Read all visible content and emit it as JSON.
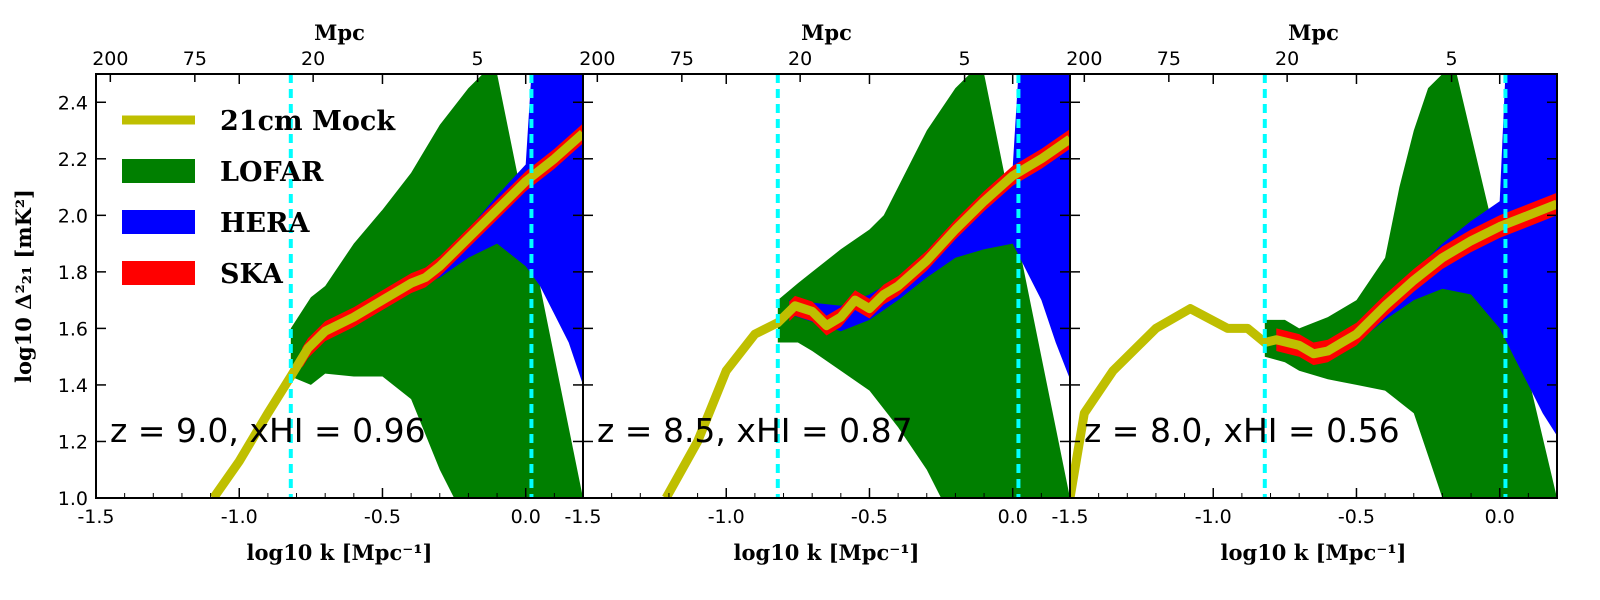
{
  "chart_data": {
    "type": "area",
    "legend_position": "top-left",
    "ylabel": "log10 Δ²₂₁ [mK²]",
    "xlabel": "log10 k [Mpc⁻¹]",
    "top_axis_label": "Mpc",
    "top_ticks": [
      {
        "label": "200",
        "logk": -1.45
      },
      {
        "label": "75",
        "logk": -1.155
      },
      {
        "label": "20",
        "logk": -0.742
      },
      {
        "label": "5",
        "logk": -0.168
      }
    ],
    "xlim": [
      -1.5,
      0.2
    ],
    "ylim": [
      1.0,
      2.5
    ],
    "x_ticks": [
      {
        "v": -1.5,
        "label": "-1.5"
      },
      {
        "v": -1.0,
        "label": "-1.0"
      },
      {
        "v": -0.5,
        "label": "-0.5"
      },
      {
        "v": 0.0,
        "label": "0.0"
      }
    ],
    "y_ticks": [
      {
        "v": 1.0,
        "label": "1.0"
      },
      {
        "v": 1.2,
        "label": "1.2"
      },
      {
        "v": 1.4,
        "label": "1.4"
      },
      {
        "v": 1.6,
        "label": "1.6"
      },
      {
        "v": 1.8,
        "label": "1.8"
      },
      {
        "v": 2.0,
        "label": "2.0"
      },
      {
        "v": 2.2,
        "label": "2.2"
      },
      {
        "v": 2.4,
        "label": "2.4"
      }
    ],
    "vlines": [
      -0.82,
      0.02
    ],
    "legend": [
      {
        "label": "21cm Mock",
        "kind": "line",
        "color": "#bfbf00"
      },
      {
        "label": "LOFAR",
        "kind": "patch",
        "color": "#007f00"
      },
      {
        "label": "HERA",
        "kind": "patch",
        "color": "#0000ff"
      },
      {
        "label": "SKA",
        "kind": "patch",
        "color": "#ff0000"
      }
    ],
    "colors": {
      "mock": "#bfbf00",
      "lofar": "#007f00",
      "hera": "#0000ff",
      "ska": "#ff0000",
      "vline": "#00ffff"
    },
    "panels": [
      {
        "annotation": "z = 9.0, xHI = 0.96",
        "mock": {
          "x": [
            -1.09,
            -1.0,
            -0.9,
            -0.82,
            -0.76,
            -0.7,
            -0.6,
            -0.5,
            -0.4,
            -0.35,
            -0.3,
            -0.2,
            -0.1,
            0.0,
            0.1,
            0.2
          ],
          "y": [
            1.0,
            1.13,
            1.3,
            1.43,
            1.53,
            1.59,
            1.64,
            1.7,
            1.76,
            1.78,
            1.82,
            1.92,
            2.02,
            2.12,
            2.2,
            2.29
          ]
        },
        "lofar_upper": {
          "x": [
            -0.82,
            -0.75,
            -0.7,
            -0.6,
            -0.5,
            -0.4,
            -0.3,
            -0.2,
            -0.15,
            -0.1
          ],
          "y": [
            1.6,
            1.71,
            1.75,
            1.9,
            2.02,
            2.15,
            2.32,
            2.45,
            2.5,
            2.5
          ]
        },
        "lofar_lower": {
          "x": [
            -0.82,
            -0.75,
            -0.7,
            -0.6,
            -0.5,
            -0.4,
            -0.3,
            -0.25,
            -0.2,
            -0.15,
            -0.1,
            -0.05,
            0.0,
            0.05,
            0.1,
            0.15,
            0.2
          ],
          "y": [
            1.43,
            1.4,
            1.44,
            1.43,
            1.43,
            1.35,
            1.1,
            1.0,
            1.0,
            1.0,
            1.0,
            1.0,
            1.0,
            1.0,
            1.0,
            1.0,
            1.0
          ]
        },
        "hera_upper": {
          "x": [
            -0.75,
            -0.5,
            -0.3,
            -0.2,
            -0.1,
            0.0,
            0.02,
            0.1,
            0.2
          ],
          "y": [
            1.53,
            1.71,
            1.85,
            1.95,
            2.07,
            2.18,
            2.5,
            2.5,
            2.5
          ]
        },
        "hera_lower": {
          "x": [
            -0.75,
            -0.5,
            -0.3,
            -0.2,
            -0.1,
            0.0,
            0.05,
            0.1,
            0.15,
            0.2
          ],
          "y": [
            1.53,
            1.69,
            1.78,
            1.85,
            1.9,
            1.82,
            1.75,
            1.65,
            1.55,
            1.4
          ]
        },
        "ska_halfwidth": 0.035,
        "ska_start": -0.78
      },
      {
        "annotation": "z = 8.5, xHI = 0.87",
        "mock": {
          "x": [
            -1.21,
            -1.1,
            -1.0,
            -0.9,
            -0.82,
            -0.76,
            -0.7,
            -0.65,
            -0.6,
            -0.55,
            -0.5,
            -0.45,
            -0.4,
            -0.3,
            -0.2,
            -0.1,
            0.0,
            0.1,
            0.2
          ],
          "y": [
            1.0,
            1.2,
            1.45,
            1.58,
            1.62,
            1.68,
            1.66,
            1.61,
            1.64,
            1.7,
            1.67,
            1.72,
            1.75,
            1.84,
            1.95,
            2.05,
            2.14,
            2.2,
            2.27
          ]
        },
        "lofar_upper": {
          "x": [
            -0.82,
            -0.75,
            -0.7,
            -0.6,
            -0.5,
            -0.45,
            -0.4,
            -0.3,
            -0.2,
            -0.15,
            -0.1
          ],
          "y": [
            1.7,
            1.76,
            1.8,
            1.88,
            1.95,
            2.0,
            2.1,
            2.3,
            2.45,
            2.5,
            2.5
          ]
        },
        "lofar_lower": {
          "x": [
            -0.82,
            -0.75,
            -0.7,
            -0.6,
            -0.5,
            -0.4,
            -0.3,
            -0.25,
            -0.2,
            -0.15,
            -0.1,
            -0.05,
            0.0,
            0.05,
            0.1,
            0.15,
            0.2
          ],
          "y": [
            1.55,
            1.55,
            1.52,
            1.45,
            1.38,
            1.25,
            1.1,
            1.0,
            1.0,
            1.0,
            1.0,
            1.0,
            1.0,
            1.0,
            1.0,
            1.0,
            1.0
          ]
        },
        "hera_upper": {
          "x": [
            -0.78,
            -0.6,
            -0.5,
            -0.4,
            -0.3,
            -0.2,
            -0.1,
            0.0,
            0.02,
            0.1,
            0.2
          ],
          "y": [
            1.7,
            1.68,
            1.72,
            1.78,
            1.86,
            1.96,
            2.06,
            2.17,
            2.5,
            2.5,
            2.5
          ]
        },
        "hera_lower": {
          "x": [
            -0.78,
            -0.6,
            -0.5,
            -0.4,
            -0.3,
            -0.2,
            -0.1,
            0.0,
            0.05,
            0.1,
            0.15,
            0.2
          ],
          "y": [
            1.65,
            1.59,
            1.63,
            1.7,
            1.78,
            1.85,
            1.88,
            1.9,
            1.8,
            1.7,
            1.55,
            1.42
          ]
        },
        "ska_halfwidth": 0.035,
        "ska_start": -0.78
      },
      {
        "annotation": "z = 8.0, xHI = 0.56",
        "mock": {
          "x": [
            -1.5,
            -1.45,
            -1.35,
            -1.2,
            -1.08,
            -0.95,
            -0.88,
            -0.82,
            -0.78,
            -0.7,
            -0.65,
            -0.6,
            -0.55,
            -0.5,
            -0.45,
            -0.4,
            -0.3,
            -0.2,
            -0.1,
            0.0,
            0.1,
            0.2
          ],
          "y": [
            1.0,
            1.3,
            1.45,
            1.6,
            1.67,
            1.6,
            1.6,
            1.55,
            1.56,
            1.54,
            1.51,
            1.52,
            1.55,
            1.58,
            1.63,
            1.68,
            1.77,
            1.85,
            1.91,
            1.96,
            2.0,
            2.04
          ]
        },
        "lofar_upper": {
          "x": [
            -0.82,
            -0.75,
            -0.7,
            -0.6,
            -0.5,
            -0.4,
            -0.35,
            -0.3,
            -0.25,
            -0.2,
            -0.15
          ],
          "y": [
            1.63,
            1.63,
            1.6,
            1.64,
            1.7,
            1.85,
            2.1,
            2.3,
            2.45,
            2.5,
            2.5
          ]
        },
        "lofar_lower": {
          "x": [
            -0.82,
            -0.75,
            -0.7,
            -0.6,
            -0.5,
            -0.4,
            -0.3,
            -0.25,
            -0.2,
            -0.15,
            -0.1,
            -0.05,
            0.0,
            0.05,
            0.1,
            0.15,
            0.2
          ],
          "y": [
            1.5,
            1.48,
            1.45,
            1.42,
            1.4,
            1.38,
            1.3,
            1.15,
            1.0,
            1.0,
            1.0,
            1.0,
            1.0,
            1.0,
            1.0,
            1.0,
            1.0
          ]
        },
        "hera_upper": {
          "x": [
            -0.78,
            -0.6,
            -0.5,
            -0.4,
            -0.3,
            -0.2,
            -0.1,
            0.0,
            0.02,
            0.1,
            0.2
          ],
          "y": [
            1.57,
            1.54,
            1.6,
            1.7,
            1.8,
            1.9,
            1.98,
            2.05,
            2.5,
            2.5,
            2.5
          ]
        },
        "hera_lower": {
          "x": [
            -0.78,
            -0.6,
            -0.5,
            -0.4,
            -0.3,
            -0.2,
            -0.1,
            0.0,
            0.05,
            0.1,
            0.15,
            0.2
          ],
          "y": [
            1.55,
            1.49,
            1.55,
            1.63,
            1.7,
            1.74,
            1.72,
            1.6,
            1.5,
            1.4,
            1.3,
            1.22
          ]
        },
        "ska_halfwidth": 0.04,
        "ska_start": -0.78
      }
    ]
  }
}
